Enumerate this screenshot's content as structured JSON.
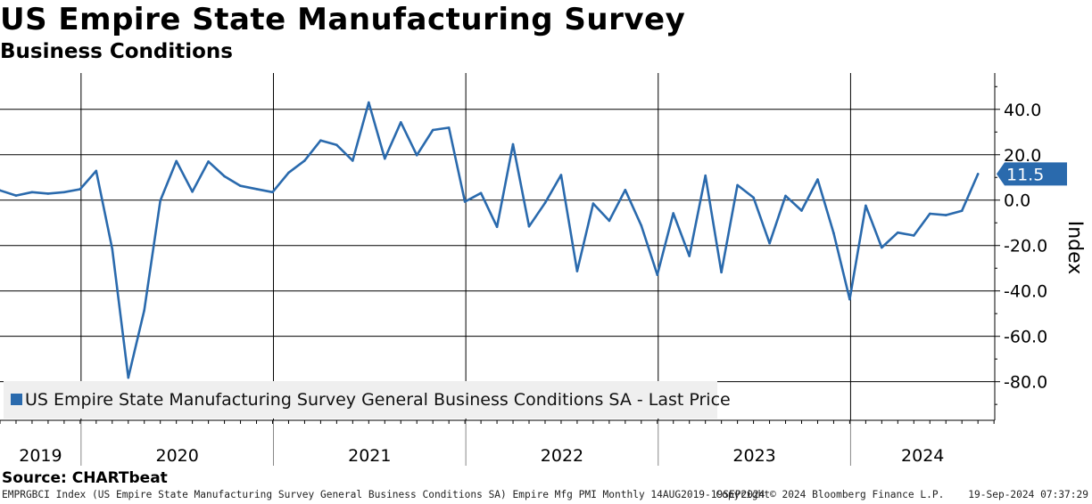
{
  "title": "US Empire State Manufacturing Survey",
  "subtitle": "Business Conditions",
  "source": "Source: CHARTbeat",
  "footer_left": "EMPRGBCI Index (US Empire State Manufacturing Survey General Business Conditions SA) Empire Mfg PMI  Monthly 14AUG2019-19SEP2024",
  "footer_copyright": "Copyright© 2024 Bloomberg Finance L.P.",
  "footer_timestamp": "19-Sep-2024 07:37:29",
  "colors": {
    "line": "#2a6aad",
    "grid": "#000000",
    "label_bg": "#2a6aad",
    "legend_bg": "#efefef"
  },
  "chart_data": {
    "type": "line",
    "title": "US Empire State Manufacturing Survey",
    "subtitle": "Business Conditions",
    "ylabel": "Index",
    "ylim": [
      -97,
      56
    ],
    "y_ticks": [
      40,
      20,
      0,
      -20,
      -40,
      -60,
      -80
    ],
    "y_tick_labels": [
      "40.0",
      "20.0",
      "0.0",
      "-20.0",
      "-40.0",
      "-60.0",
      "-80.0"
    ],
    "x_year_labels": [
      "2019",
      "2020",
      "2021",
      "2022",
      "2023",
      "2024"
    ],
    "last_value_label": "11.5",
    "legend": [
      "US Empire State Manufacturing Survey General Business Conditions SA - Last Price"
    ],
    "series": [
      {
        "name": "US Empire State Manufacturing Survey General Business Conditions SA - Last Price",
        "x": [
          "2019-08",
          "2019-09",
          "2019-10",
          "2019-11",
          "2019-12",
          "2020-01",
          "2020-02",
          "2020-03",
          "2020-04",
          "2020-05",
          "2020-06",
          "2020-07",
          "2020-08",
          "2020-09",
          "2020-10",
          "2020-11",
          "2020-12",
          "2021-01",
          "2021-02",
          "2021-03",
          "2021-04",
          "2021-05",
          "2021-06",
          "2021-07",
          "2021-08",
          "2021-09",
          "2021-10",
          "2021-11",
          "2021-12",
          "2022-01",
          "2022-02",
          "2022-03",
          "2022-04",
          "2022-05",
          "2022-06",
          "2022-07",
          "2022-08",
          "2022-09",
          "2022-10",
          "2022-11",
          "2022-12",
          "2023-01",
          "2023-02",
          "2023-03",
          "2023-04",
          "2023-05",
          "2023-06",
          "2023-07",
          "2023-08",
          "2023-09",
          "2023-10",
          "2023-11",
          "2023-12",
          "2024-01",
          "2024-02",
          "2024-03",
          "2024-04",
          "2024-05",
          "2024-06",
          "2024-07",
          "2024-08",
          "2024-09"
        ],
        "values": [
          4.3,
          2.0,
          3.5,
          2.9,
          3.5,
          4.8,
          12.9,
          -21.5,
          -78.2,
          -48.5,
          -0.2,
          17.2,
          3.7,
          17.0,
          10.5,
          6.3,
          4.9,
          3.5,
          12.1,
          17.4,
          26.3,
          24.3,
          17.4,
          43.0,
          18.3,
          34.3,
          19.8,
          30.9,
          31.9,
          -0.7,
          3.1,
          -11.8,
          24.6,
          -11.6,
          -1.2,
          11.1,
          -31.3,
          -1.5,
          -9.1,
          4.5,
          -11.2,
          -32.9,
          -5.8,
          -24.6,
          10.8,
          -31.8,
          6.6,
          1.1,
          -19.0,
          1.9,
          -4.6,
          9.1,
          -14.5,
          -43.7,
          -2.4,
          -20.9,
          -14.3,
          -15.6,
          -6.0,
          -6.6,
          -4.7,
          11.5
        ]
      }
    ]
  }
}
